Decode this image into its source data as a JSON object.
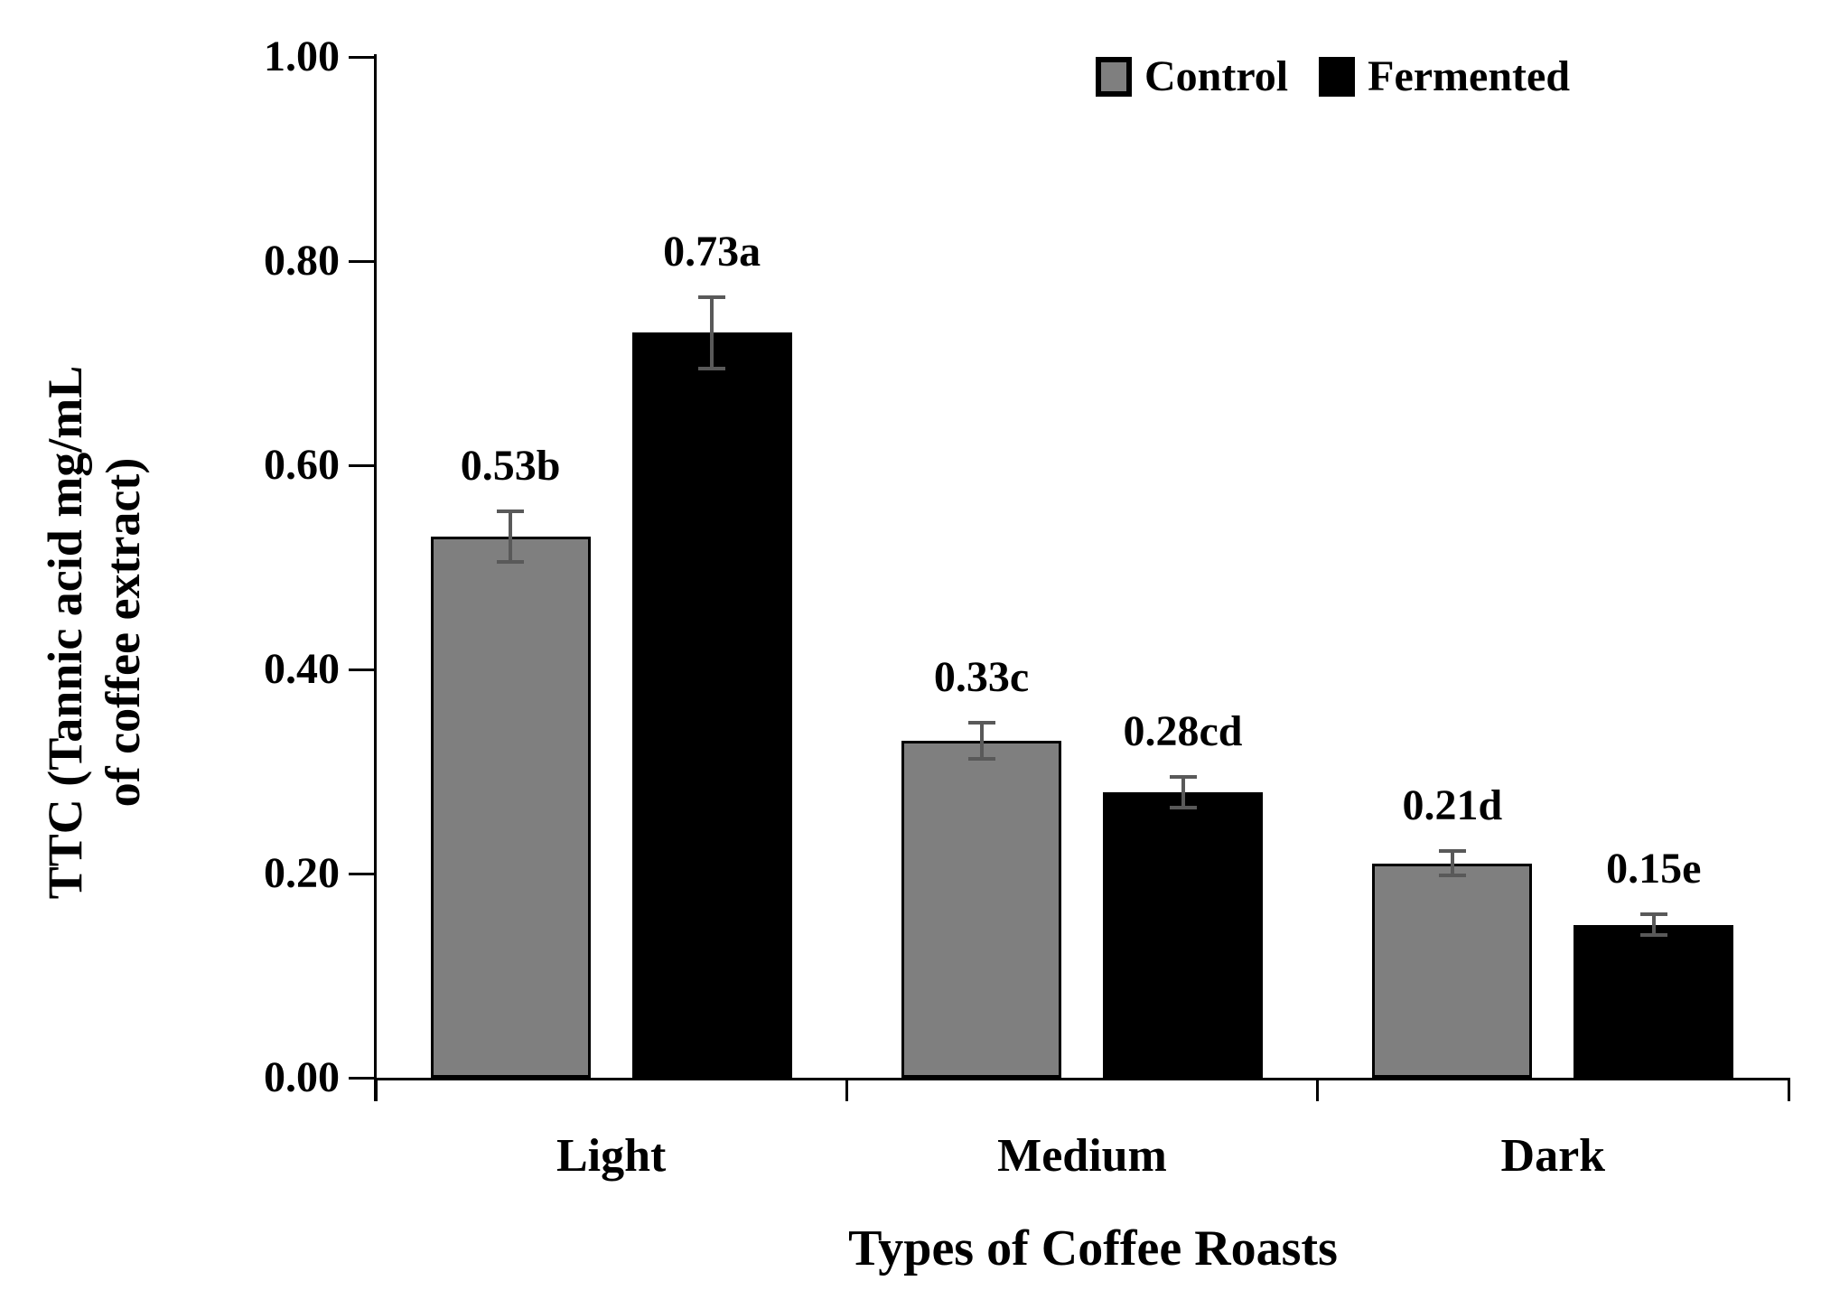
{
  "chart_data": {
    "type": "bar",
    "categories": [
      "Light",
      "Medium",
      "Dark"
    ],
    "series": [
      {
        "name": "Control",
        "color": "#7f7f7f",
        "values": [
          0.53,
          0.33,
          0.21
        ],
        "error_bars": [
          0.025,
          0.018,
          0.012
        ],
        "point_labels": [
          "0.53b",
          "0.33c",
          "0.21d"
        ]
      },
      {
        "name": "Fermented",
        "color": "#000000",
        "values": [
          0.73,
          0.28,
          0.15
        ],
        "error_bars": [
          0.035,
          0.015,
          0.01
        ],
        "point_labels": [
          "0.73a",
          "0.28cd",
          "0.15e"
        ]
      }
    ],
    "xlabel": "Types of Coffee Roasts",
    "ylabel": "TTC (Tannic acid mg/mL of coffee extract)",
    "ylabel_lines": [
      "TTC (Tannic acid mg/mL",
      "of coffee extract)"
    ],
    "ylim": [
      0.0,
      1.0
    ],
    "yticks": [
      "0.00",
      "0.20",
      "0.40",
      "0.60",
      "0.80",
      "1.00"
    ],
    "grid": false,
    "legend_position": "top-right",
    "axis_color": "#000000",
    "error_bar_color": "#595959",
    "text_color": "#000000"
  }
}
